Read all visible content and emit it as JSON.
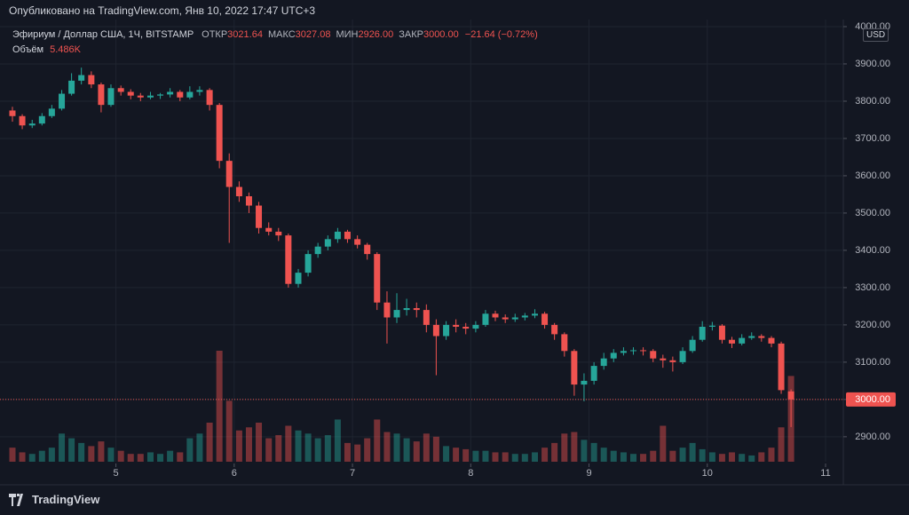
{
  "chart_data": {
    "type": "candlestick",
    "published": "Опубликовано на TradingView.com, Янв 10, 2022 17:47 UTC+3",
    "title": "Эфириум / Доллар США, 1Ч, BITSTAMP",
    "ohlc_header": [
      {
        "label": "ОТКР",
        "value": "3021.64"
      },
      {
        "label": "МАКС",
        "value": "3027.08"
      },
      {
        "label": "МИН",
        "value": "2926.00"
      },
      {
        "label": "ЗАКР",
        "value": "3000.00"
      }
    ],
    "change": "−21.64 (−0.72%)",
    "volume_label": "Объём",
    "volume_last_label": "5.486K",
    "currency": "USD",
    "close_label": "3000.00",
    "brand": "TradingView",
    "up_color": "#26a69a",
    "down_color": "#ef5350",
    "grid": true,
    "xlim": [
      4.02,
      11.15
    ],
    "xticks": [
      5,
      6,
      7,
      8,
      9,
      10,
      11
    ],
    "ylim": [
      2833,
      4019
    ],
    "yticks": [
      {
        "value": 2900,
        "label": "2900.00"
      },
      {
        "value": 3000,
        "label": "3000.00"
      },
      {
        "value": 3100,
        "label": "3100.00"
      },
      {
        "value": 3200,
        "label": "3200.00"
      },
      {
        "value": 3300,
        "label": "3300.00"
      },
      {
        "value": 3400,
        "label": "3400.00"
      },
      {
        "value": 3500,
        "label": "3500.00"
      },
      {
        "value": 3600,
        "label": "3600.00"
      },
      {
        "value": 3700,
        "label": "3700.00"
      },
      {
        "value": 3800,
        "label": "3800.00"
      },
      {
        "value": 3900,
        "label": "3900.00"
      },
      {
        "value": 4000,
        "label": "4000.00"
      }
    ],
    "x": [
      4.125,
      4.208,
      4.292,
      4.375,
      4.458,
      4.542,
      4.625,
      4.708,
      4.792,
      4.875,
      4.958,
      5.042,
      5.125,
      5.208,
      5.292,
      5.375,
      5.458,
      5.542,
      5.625,
      5.708,
      5.792,
      5.875,
      5.958,
      6.042,
      6.125,
      6.208,
      6.292,
      6.375,
      6.458,
      6.542,
      6.625,
      6.708,
      6.792,
      6.875,
      6.958,
      7.042,
      7.125,
      7.208,
      7.292,
      7.375,
      7.458,
      7.542,
      7.625,
      7.708,
      7.792,
      7.875,
      7.958,
      8.042,
      8.125,
      8.208,
      8.292,
      8.375,
      8.458,
      8.542,
      8.625,
      8.708,
      8.792,
      8.875,
      8.958,
      9.042,
      9.125,
      9.208,
      9.292,
      9.375,
      9.458,
      9.542,
      9.625,
      9.708,
      9.792,
      9.875,
      9.958,
      10.042,
      10.125,
      10.208,
      10.292,
      10.375,
      10.458,
      10.542,
      10.625,
      10.708
    ],
    "open": [
      3775,
      3760,
      3735,
      3740,
      3760,
      3780,
      3820,
      3855,
      3870,
      3845,
      3790,
      3835,
      3825,
      3815,
      3810,
      3815,
      3818,
      3825,
      3810,
      3825,
      3830,
      3790,
      3640,
      3570,
      3545,
      3520,
      3460,
      3450,
      3440,
      3310,
      3340,
      3390,
      3410,
      3430,
      3450,
      3430,
      3415,
      3390,
      3260,
      3220,
      3240,
      3245,
      3240,
      3200,
      3170,
      3200,
      3195,
      3190,
      3200,
      3230,
      3220,
      3215,
      3220,
      3225,
      3230,
      3200,
      3175,
      3130,
      3040,
      3050,
      3090,
      3110,
      3125,
      3130,
      3132,
      3130,
      3110,
      3105,
      3100,
      3130,
      3160,
      3195,
      3198,
      3160,
      3150,
      3165,
      3170,
      3165,
      3150,
      3021.64
    ],
    "high": [
      3785,
      3765,
      3750,
      3768,
      3790,
      3830,
      3875,
      3890,
      3880,
      3850,
      3845,
      3842,
      3832,
      3822,
      3825,
      3822,
      3835,
      3830,
      3840,
      3840,
      3835,
      3795,
      3660,
      3585,
      3555,
      3530,
      3475,
      3460,
      3445,
      3350,
      3400,
      3420,
      3440,
      3460,
      3455,
      3440,
      3420,
      3395,
      3290,
      3285,
      3270,
      3260,
      3255,
      3215,
      3210,
      3215,
      3205,
      3210,
      3240,
      3238,
      3228,
      3230,
      3232,
      3242,
      3235,
      3205,
      3180,
      3135,
      3070,
      3100,
      3125,
      3135,
      3140,
      3140,
      3140,
      3135,
      3120,
      3115,
      3140,
      3170,
      3210,
      3208,
      3202,
      3168,
      3175,
      3180,
      3175,
      3170,
      3155,
      3027.08
    ],
    "low": [
      3745,
      3725,
      3728,
      3735,
      3755,
      3775,
      3815,
      3845,
      3835,
      3770,
      3785,
      3815,
      3805,
      3800,
      3805,
      3806,
      3810,
      3800,
      3805,
      3815,
      3775,
      3620,
      3420,
      3530,
      3500,
      3445,
      3440,
      3425,
      3300,
      3300,
      3330,
      3380,
      3400,
      3420,
      3420,
      3405,
      3375,
      3240,
      3150,
      3205,
      3225,
      3220,
      3180,
      3065,
      3160,
      3180,
      3175,
      3180,
      3195,
      3210,
      3205,
      3208,
      3212,
      3218,
      3190,
      3160,
      3115,
      3010,
      2995,
      3040,
      3080,
      3100,
      3118,
      3120,
      3118,
      3100,
      3085,
      3075,
      3095,
      3125,
      3155,
      3185,
      3150,
      3138,
      3145,
      3160,
      3155,
      3140,
      3015,
      2926
    ],
    "close": [
      3760,
      3735,
      3740,
      3760,
      3780,
      3820,
      3855,
      3870,
      3845,
      3790,
      3835,
      3825,
      3815,
      3810,
      3815,
      3818,
      3825,
      3810,
      3825,
      3830,
      3790,
      3640,
      3570,
      3545,
      3520,
      3460,
      3450,
      3440,
      3310,
      3340,
      3390,
      3410,
      3430,
      3450,
      3430,
      3415,
      3390,
      3260,
      3220,
      3240,
      3245,
      3240,
      3200,
      3170,
      3200,
      3195,
      3190,
      3200,
      3230,
      3220,
      3215,
      3220,
      3225,
      3230,
      3200,
      3175,
      3130,
      3040,
      3050,
      3090,
      3110,
      3125,
      3130,
      3132,
      3130,
      3110,
      3105,
      3100,
      3130,
      3160,
      3195,
      3198,
      3160,
      3150,
      3165,
      3170,
      3165,
      3150,
      3025,
      3000
    ],
    "volume": [
      900,
      600,
      500,
      700,
      900,
      1800,
      1500,
      1200,
      1000,
      1300,
      900,
      700,
      500,
      500,
      600,
      500,
      700,
      600,
      1500,
      1800,
      2500,
      7100,
      3900,
      2000,
      2200,
      2500,
      1500,
      1700,
      2300,
      2000,
      1800,
      1500,
      1700,
      2700,
      1200,
      1100,
      1500,
      2700,
      1900,
      1800,
      1500,
      1300,
      1800,
      1600,
      1000,
      900,
      800,
      700,
      700,
      600,
      600,
      500,
      500,
      600,
      900,
      1200,
      1800,
      1900,
      1400,
      1200,
      900,
      700,
      600,
      500,
      500,
      700,
      2300,
      700,
      900,
      1200,
      800,
      600,
      500,
      600,
      500,
      400,
      600,
      900,
      2200,
      5486
    ]
  }
}
